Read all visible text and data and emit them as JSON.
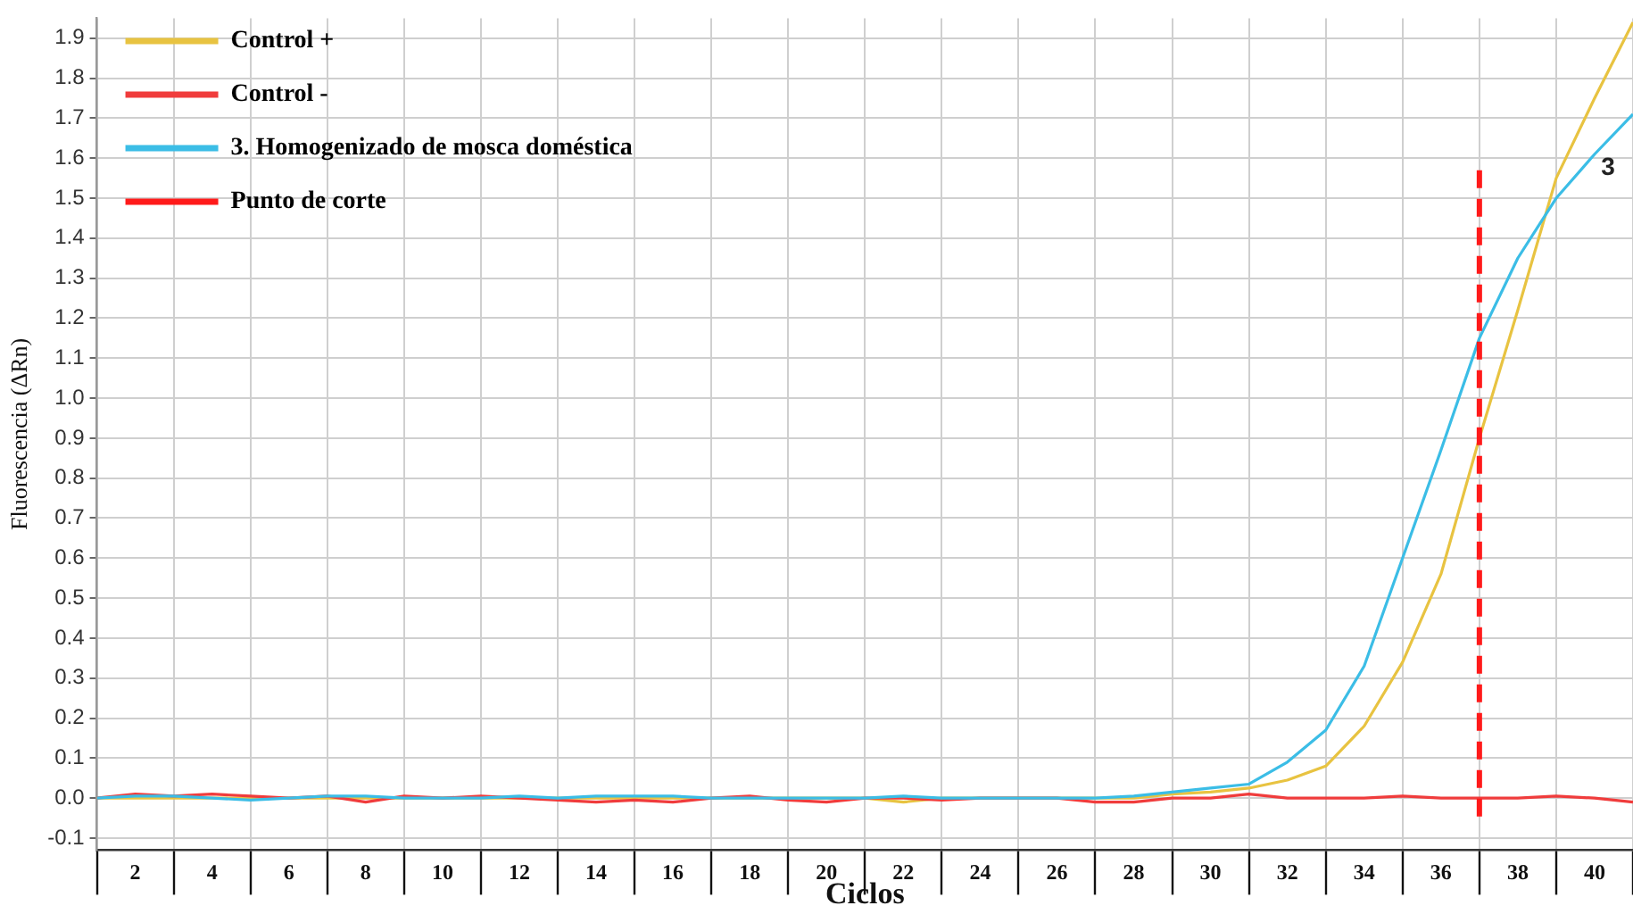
{
  "chart_data": {
    "type": "line",
    "xlabel": "Ciclos",
    "ylabel": "Fluorescencia (ΔRn)",
    "x": [
      1,
      2,
      3,
      4,
      5,
      6,
      7,
      8,
      9,
      10,
      11,
      12,
      13,
      14,
      15,
      16,
      17,
      18,
      19,
      20,
      21,
      22,
      23,
      24,
      25,
      26,
      27,
      28,
      29,
      30,
      31,
      32,
      33,
      34,
      35,
      36,
      37,
      38,
      39,
      40,
      41
    ],
    "series": [
      {
        "name": "Control +",
        "color": "#e8c341",
        "values": [
          0,
          0,
          0,
          0,
          0,
          0,
          0,
          0,
          0,
          0,
          0,
          0,
          0,
          0,
          0,
          0,
          0,
          0,
          0,
          0,
          0,
          -0.01,
          0,
          0,
          0,
          0,
          0,
          0,
          0.01,
          0.015,
          0.025,
          0.045,
          0.08,
          0.18,
          0.34,
          0.56,
          0.9,
          1.22,
          1.55,
          1.75,
          1.94
        ]
      },
      {
        "name": "Control -",
        "color": "#f03c3c",
        "values": [
          0,
          0.01,
          0.005,
          0.01,
          0.005,
          0,
          0.005,
          -0.01,
          0.005,
          0,
          0.005,
          0,
          -0.005,
          -0.01,
          -0.005,
          -0.01,
          0,
          0.005,
          -0.005,
          -0.01,
          0,
          0,
          -0.005,
          0,
          0,
          0,
          -0.01,
          -0.01,
          0,
          0,
          0.01,
          0,
          0,
          0,
          0.005,
          0,
          0,
          0,
          0.005,
          0,
          -0.01
        ]
      },
      {
        "name": "3. Homogenizado de mosca doméstica",
        "color": "#3bbde6",
        "values": [
          0,
          0.005,
          0.005,
          0,
          -0.005,
          0,
          0.005,
          0.005,
          0,
          0,
          0,
          0.005,
          0,
          0.005,
          0.005,
          0.005,
          0,
          0,
          0,
          0,
          0,
          0.005,
          0,
          0,
          0,
          0,
          0,
          0.005,
          0.015,
          0.025,
          0.035,
          0.09,
          0.17,
          0.33,
          0.6,
          0.87,
          1.15,
          1.35,
          1.5,
          1.61,
          1.71
        ]
      },
      {
        "name": "Punto de corte",
        "color": "#ff1a1a",
        "x": [
          37,
          37
        ],
        "values": [
          1.57,
          -0.06
        ],
        "line_style": "dashed"
      }
    ],
    "annotations": [
      "3"
    ],
    "xlim": [
      1,
      41
    ],
    "xticks": [
      {
        "value": 1,
        "label": null
      },
      2,
      {
        "value": 3,
        "label": null
      },
      4,
      {
        "value": 5,
        "label": null
      },
      6,
      {
        "value": 7,
        "label": null
      },
      8,
      {
        "value": 9,
        "label": null
      },
      10,
      {
        "value": 11,
        "label": null
      },
      12,
      {
        "value": 13,
        "label": null
      },
      14,
      {
        "value": 15,
        "label": null
      },
      16,
      {
        "value": 17,
        "label": null
      },
      18,
      {
        "value": 19,
        "label": null
      },
      20,
      {
        "value": 21,
        "label": null
      },
      22,
      {
        "value": 23,
        "label": null
      },
      24,
      {
        "value": 25,
        "label": null
      },
      26,
      {
        "value": 27,
        "label": null
      },
      28,
      {
        "value": 29,
        "label": null
      },
      30,
      {
        "value": 31,
        "label": null
      },
      32,
      {
        "value": 33,
        "label": null
      },
      34,
      {
        "value": 35,
        "label": null
      },
      36,
      {
        "value": 37,
        "label": null
      },
      38,
      {
        "value": 39,
        "label": null
      },
      40,
      {
        "value": 41,
        "label": null
      }
    ],
    "ylim": [
      -0.13,
      1.95
    ],
    "yticks": [
      -0.1,
      {
        "value": 0,
        "label": "0.0"
      },
      0.1,
      0.2,
      0.3,
      0.4,
      0.5,
      0.6,
      0.7,
      0.8,
      0.9,
      {
        "value": 1,
        "label": "1.0"
      },
      1.1,
      1.2,
      1.3,
      1.4,
      1.5,
      1.6,
      1.7,
      1.8,
      1.9
    ],
    "grid": true,
    "legend": "top left",
    "marker": "none",
    "line_style": "solid"
  }
}
